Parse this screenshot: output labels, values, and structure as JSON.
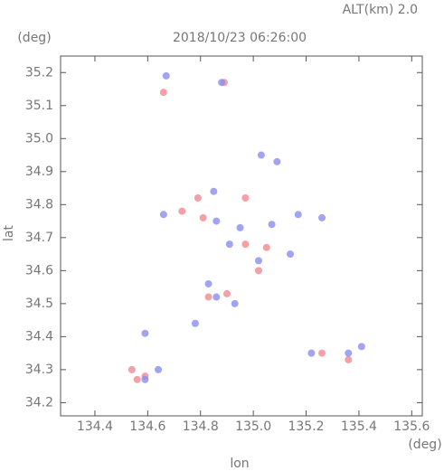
{
  "chart_data": {
    "type": "scatter",
    "title": "2018/10/23 06:26:00",
    "subtitle": "ALT(km) 2.0",
    "y_unit": "(deg)",
    "x_unit": "(deg)",
    "xlabel": "lon",
    "ylabel": "lat",
    "xlim": [
      134.27,
      135.64
    ],
    "ylim": [
      34.16,
      35.25
    ],
    "xticks": [
      134.4,
      134.6,
      134.8,
      {
        "value": 135,
        "label": "135.0"
      },
      135.2,
      135.4,
      135.6
    ],
    "yticks": [
      34.2,
      34.3,
      34.4,
      34.5,
      34.6,
      34.7,
      34.8,
      34.9,
      {
        "value": 35,
        "label": "35.0"
      },
      35.1,
      35.2
    ],
    "series": [
      {
        "color": "#f08a90",
        "x": [
          134.66,
          134.89,
          134.79,
          134.81,
          134.97,
          135.05,
          135.02,
          134.83,
          134.9,
          134.54,
          134.59,
          134.56,
          135.26,
          135.36,
          134.73,
          134.97
        ],
        "y": [
          35.14,
          35.17,
          34.82,
          34.76,
          34.68,
          34.67,
          34.6,
          34.52,
          34.53,
          34.3,
          34.28,
          34.27,
          34.35,
          34.33,
          34.78,
          34.82
        ]
      },
      {
        "color": "#8a8cf0",
        "x": [
          134.67,
          134.88,
          135.03,
          135.09,
          134.85,
          134.66,
          134.86,
          134.95,
          135.07,
          134.91,
          135.02,
          135.14,
          135.17,
          135.26,
          134.86,
          134.93,
          134.78,
          134.83,
          134.59,
          134.64,
          134.59,
          135.41,
          135.36,
          135.22
        ],
        "y": [
          35.19,
          35.17,
          34.95,
          34.93,
          34.84,
          34.77,
          34.75,
          34.73,
          34.74,
          34.68,
          34.63,
          34.65,
          34.77,
          34.76,
          34.52,
          34.5,
          34.44,
          34.56,
          34.41,
          34.3,
          34.27,
          34.37,
          34.35,
          34.35
        ]
      }
    ]
  }
}
